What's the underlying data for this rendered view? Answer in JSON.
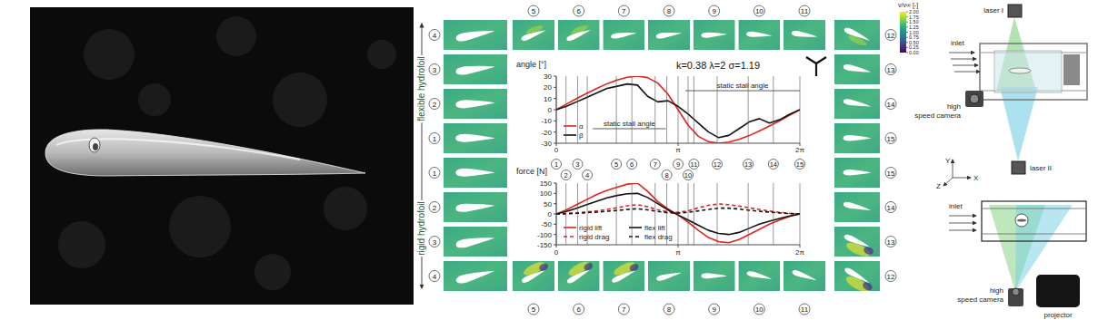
{
  "chart_data": [
    {
      "type": "line",
      "ylabel": "angle [°]",
      "subtitle": "k=0.38 λ=2 σ=1.19",
      "x": [
        0,
        0.2618,
        0.5236,
        0.7854,
        1.0472,
        1.309,
        1.5708,
        1.8326,
        2.0944,
        2.3562,
        2.618,
        2.8798,
        3.1416,
        3.4034,
        3.6652,
        3.927,
        4.1888,
        4.4506,
        4.7124,
        4.9742,
        5.236,
        5.4978,
        5.7596,
        6.0214,
        6.2832
      ],
      "xlim": [
        0,
        6.2832
      ],
      "xticks": [
        0,
        {
          "value": 3.1416,
          "label": "π"
        },
        {
          "value": 6.2832,
          "label": "2π"
        }
      ],
      "ylim": [
        -30,
        30
      ],
      "yticks": [
        -30,
        -20,
        -10,
        0,
        10,
        20,
        30
      ],
      "series": [
        {
          "name": "α",
          "color": "#e0241b",
          "line_style": "solid",
          "values": [
            0,
            5.0,
            9.9,
            14.6,
            19.1,
            23.2,
            26.6,
            29.0,
            30.0,
            28.7,
            23.8,
            14.0,
            0,
            -14.0,
            -23.8,
            -28.7,
            -30.0,
            -29.0,
            -26.6,
            -23.2,
            -19.1,
            -14.6,
            -9.9,
            -5.0,
            0
          ]
        },
        {
          "name": "β",
          "color": "#111111",
          "line_style": "solid",
          "values": [
            0,
            3,
            7,
            11,
            15,
            19,
            21,
            23,
            22,
            12,
            7,
            8,
            3,
            -4,
            -12,
            -20,
            -25,
            -23,
            -17,
            -11,
            -8,
            -12,
            -9,
            -4,
            0
          ]
        }
      ],
      "annotations": [
        {
          "text": "static stall angle",
          "y": 17
        },
        {
          "text": "static stall angle",
          "y": -17
        }
      ],
      "phases": {
        "labels": [
          "1",
          "2",
          "3",
          "4",
          "5",
          "6",
          "7",
          "8",
          "9",
          "10",
          "11",
          "12",
          "13",
          "14",
          "15"
        ],
        "x": [
          0,
          0.25,
          0.55,
          0.8,
          1.55,
          1.95,
          2.55,
          2.85,
          3.1416,
          3.4,
          3.55,
          4.15,
          4.95,
          5.6,
          6.2832
        ]
      },
      "legend": "lower left"
    },
    {
      "type": "line",
      "ylabel": "force [N]",
      "x": [
        0,
        0.2618,
        0.5236,
        0.7854,
        1.0472,
        1.309,
        1.5708,
        1.8326,
        2.0944,
        2.3562,
        2.618,
        2.8798,
        3.1416,
        3.4034,
        3.6652,
        3.927,
        4.1888,
        4.4506,
        4.7124,
        4.9742,
        5.236,
        5.4978,
        5.7596,
        6.0214,
        6.2832
      ],
      "xlim": [
        0,
        6.2832
      ],
      "xticks": [
        0,
        {
          "value": 3.1416,
          "label": "π"
        },
        {
          "value": 6.2832,
          "label": "2π"
        }
      ],
      "ylim": [
        -150,
        150
      ],
      "yticks": [
        -150,
        -100,
        -50,
        0,
        50,
        100,
        150
      ],
      "series": [
        {
          "name": "rigid lift",
          "color": "#e0241b",
          "line_style": "solid",
          "values": [
            0,
            20,
            45,
            70,
            95,
            115,
            130,
            145,
            150,
            110,
            60,
            25,
            -5,
            -40,
            -80,
            -115,
            -135,
            -140,
            -125,
            -100,
            -75,
            -50,
            -30,
            -12,
            0
          ]
        },
        {
          "name": "rigid drag",
          "color": "#e0241b",
          "line_style": "dashed",
          "values": [
            0,
            2,
            5,
            10,
            15,
            22,
            30,
            40,
            45,
            35,
            20,
            10,
            8,
            15,
            30,
            42,
            48,
            45,
            38,
            30,
            22,
            14,
            8,
            3,
            0
          ]
        },
        {
          "name": "flex lift",
          "color": "#111111",
          "line_style": "solid",
          "values": [
            0,
            12,
            28,
            45,
            62,
            78,
            90,
            98,
            100,
            80,
            50,
            20,
            -5,
            -30,
            -55,
            -80,
            -95,
            -100,
            -90,
            -70,
            -50,
            -35,
            -22,
            -10,
            0
          ]
        },
        {
          "name": "flex drag",
          "color": "#111111",
          "line_style": "dashed",
          "values": [
            0,
            1,
            3,
            6,
            9,
            13,
            17,
            22,
            25,
            20,
            12,
            6,
            4,
            8,
            15,
            22,
            28,
            28,
            24,
            18,
            13,
            9,
            5,
            2,
            0
          ]
        }
      ],
      "legend": "lower left"
    }
  ],
  "frames": {
    "flexible": {
      "label": "flexible hydrofoil",
      "numbers": [
        "1",
        "2",
        "3",
        "4",
        "5",
        "6",
        "7",
        "8",
        "9",
        "10",
        "11",
        "12",
        "13",
        "14",
        "15"
      ]
    },
    "rigid": {
      "label": "rigid hydrofoil",
      "numbers": [
        "1",
        "2",
        "3",
        "4",
        "5",
        "6",
        "7",
        "8",
        "9",
        "10",
        "11",
        "12",
        "13",
        "14",
        "15"
      ]
    }
  },
  "colorbar": {
    "title": "v/v∞ [-]",
    "range": [
      0,
      2
    ],
    "ticks": [
      {
        "value": 2,
        "label": "2.00"
      },
      {
        "value": 1.75,
        "label": "1.75"
      },
      {
        "value": 1.5,
        "label": "1.50"
      },
      {
        "value": 1.25,
        "label": "1.25"
      },
      {
        "value": 1,
        "label": "1.00"
      },
      {
        "value": 0.75,
        "label": "0.75"
      },
      {
        "value": 0.5,
        "label": "0.50"
      },
      {
        "value": 0.25,
        "label": "0.25"
      },
      {
        "value": 0,
        "label": "0.00"
      }
    ]
  },
  "setup": {
    "top_view": {
      "laser_top": "laser I",
      "inlet": "inlet",
      "camera": [
        "high",
        "speed camera"
      ],
      "laser_bottom": "laser II"
    },
    "axes": [
      "Y",
      "Z",
      "X"
    ],
    "side_view": {
      "inlet": "inlet",
      "camera": [
        "high",
        "speed camera"
      ],
      "projector": "projector"
    }
  }
}
